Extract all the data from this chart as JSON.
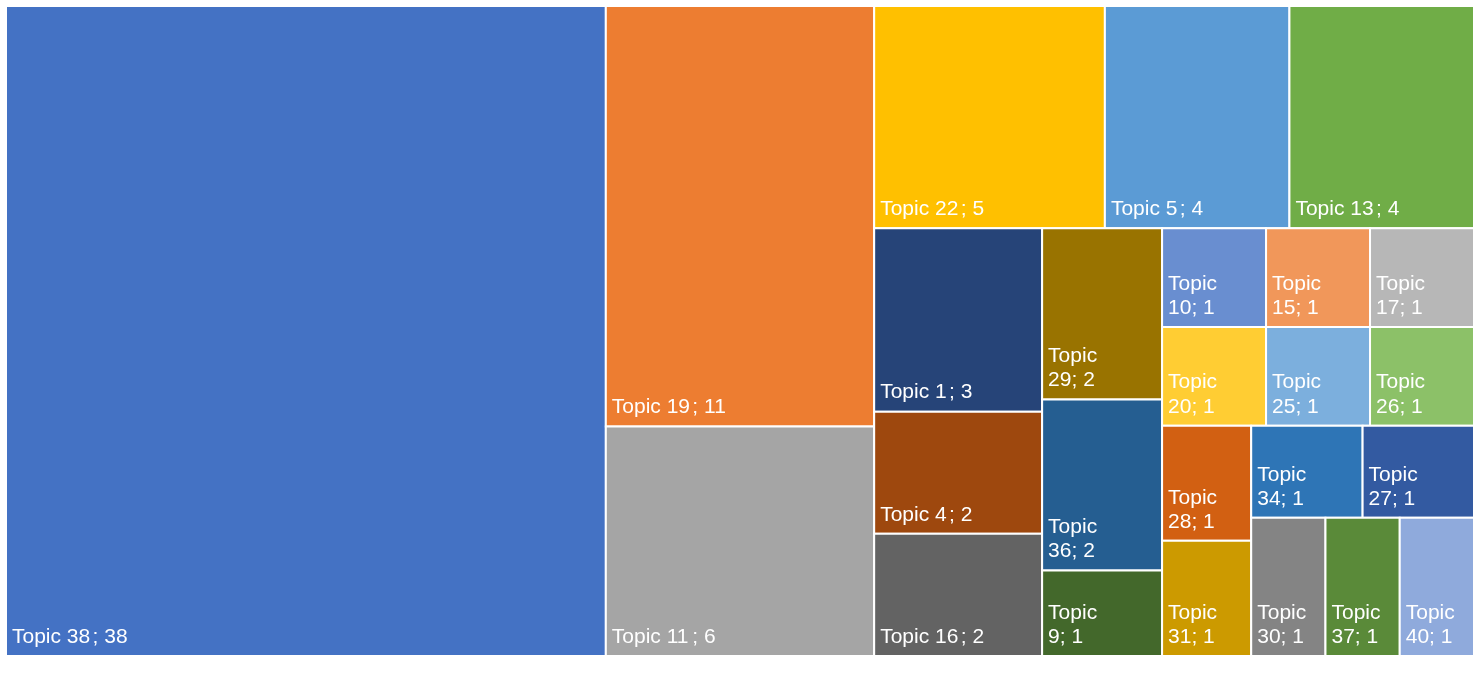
{
  "chart_data": {
    "type": "other",
    "categories": [
      "Topic 38",
      "Topic 19",
      "Topic 11",
      "Topic 22",
      "Topic 5",
      "Topic 13",
      "Topic 1",
      "Topic 4",
      "Topic 16",
      "Topic 29",
      "Topic 36",
      "Topic 9",
      "Topic 10",
      "Topic 15",
      "Topic 17",
      "Topic 20",
      "Topic 25",
      "Topic 26",
      "Topic 28",
      "Topic 31",
      "Topic 34",
      "Topic 27",
      "Topic 30",
      "Topic 37",
      "Topic 40"
    ],
    "values": [
      38,
      11,
      6,
      5,
      4,
      4,
      3,
      2,
      2,
      2,
      2,
      1,
      1,
      1,
      1,
      1,
      1,
      1,
      1,
      1,
      1,
      1,
      1,
      1,
      1
    ],
    "colors": [
      "#4472c4",
      "#ed7d31",
      "#a5a5a5",
      "#ffc000",
      "#5b9bd5",
      "#70ad47",
      "#264478",
      "#9e480e",
      "#636363",
      "#997300",
      "#255e91",
      "#43682b",
      "#698ed0",
      "#f1975a",
      "#b7b7b7",
      "#ffcd33",
      "#7cafdd",
      "#8cc168",
      "#d26012",
      "#cc9a00",
      "#2e75b6",
      "#335aa1",
      "#848484",
      "#5a8a39",
      "#8faadc"
    ],
    "value_labels": [
      "; 38",
      "; 11",
      "; 6",
      "; 5",
      "; 4",
      "; 4",
      "; 3",
      "; 2",
      "; 2",
      "; 2",
      "; 2",
      "; 1",
      "; 1",
      "; 1",
      "; 1",
      "; 1",
      "; 1",
      "; 1",
      "; 1",
      "; 1",
      "; 1",
      "; 1",
      "; 1",
      "; 1",
      "; 1"
    ]
  }
}
